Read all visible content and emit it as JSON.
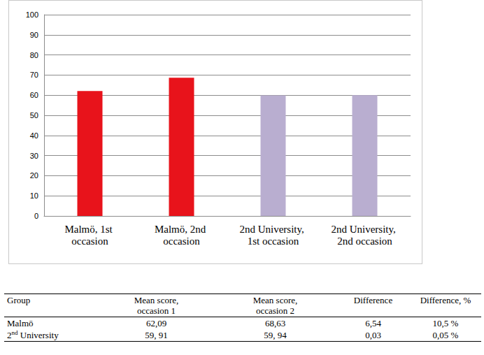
{
  "chart_data": {
    "type": "bar",
    "categories": [
      "Malmö, 1st occasion",
      "Malmö, 2nd occasion",
      "2nd University, 1st occasion",
      "2nd University, 2nd occasion"
    ],
    "values": [
      62.09,
      68.63,
      59.91,
      59.94
    ],
    "colors": [
      "#e8131b",
      "#e8131b",
      "#b9aed0",
      "#b9aed0"
    ],
    "ylim": [
      0,
      100
    ],
    "yticks": [
      0,
      10,
      20,
      30,
      40,
      50,
      60,
      70,
      80,
      90,
      100
    ],
    "grid": true
  },
  "table": {
    "header": [
      "Group",
      "Mean score, occasion 1",
      "Mean score, occasion 2",
      "Difference",
      "Difference, %"
    ],
    "rows": [
      [
        "Malmö",
        "62,09",
        "68,63",
        "6,54",
        "10,5 %"
      ],
      [
        "2nd University",
        "59, 91",
        "59, 94",
        "0,03",
        "0,05 %"
      ]
    ]
  }
}
